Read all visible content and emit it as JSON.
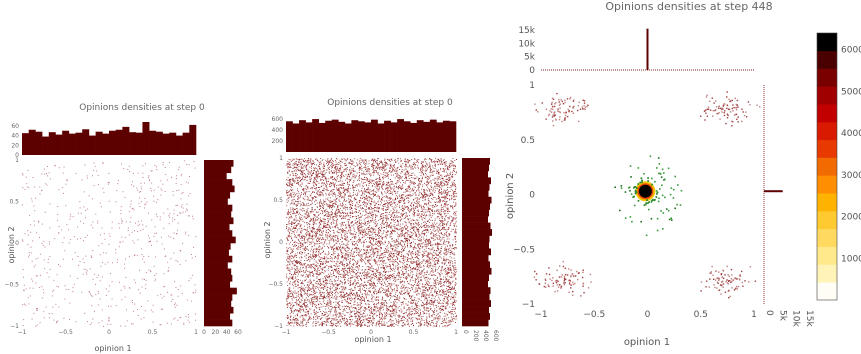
{
  "chart_data": [
    {
      "type": "scatter",
      "title": "Opinions densities at step 0",
      "xlabel": "opinion 1",
      "ylabel": "opinion 2",
      "xlim": [
        -1,
        1
      ],
      "ylim": [
        -1,
        1
      ],
      "x_ticks": [
        "−1",
        "−0.5",
        "0",
        "0.5",
        "1"
      ],
      "y_ticks": [
        "1",
        "0.5",
        "0",
        "−0.5",
        "−1"
      ],
      "distribution": "uniform",
      "point_color": "#b06070",
      "bar_color": "#5c0000",
      "top_hist": {
        "yticks": [
          "60",
          "40",
          "20",
          "0"
        ],
        "ymax": 68,
        "values": [
          45,
          52,
          48,
          38,
          47,
          42,
          50,
          44,
          46,
          53,
          40,
          48,
          44,
          50,
          52,
          58,
          47,
          46,
          68,
          50,
          48,
          44,
          46,
          40,
          46,
          62
        ]
      },
      "right_hist": {
        "xticks": [
          "0",
          "20",
          "40",
          "60"
        ],
        "xmax": 60,
        "values": [
          52,
          48,
          40,
          50,
          54,
          46,
          42,
          50,
          48,
          52,
          45,
          50,
          56,
          47,
          44,
          50,
          42,
          48,
          50,
          46,
          58,
          50,
          48,
          52,
          46,
          50
        ]
      }
    },
    {
      "type": "scatter",
      "title": "Opinions densities at step 0",
      "xlabel": "opinion 1",
      "ylabel": "opinion 2",
      "xlim": [
        -1,
        1
      ],
      "ylim": [
        -1,
        1
      ],
      "x_ticks": [
        "−1",
        "−0.5",
        "0",
        "0.5",
        "1"
      ],
      "y_ticks": [
        "1",
        "0.5",
        "0",
        "−0.5",
        "−1"
      ],
      "distribution": "uniform-dense",
      "point_color": "#8a1c1c",
      "bar_color": "#5c0000",
      "top_hist": {
        "yticks": [
          "600",
          "400",
          "200"
        ],
        "ymax": 620,
        "values": [
          560,
          520,
          580,
          540,
          600,
          530,
          570,
          590,
          550,
          520,
          580,
          560,
          540,
          590,
          520,
          570,
          540,
          600,
          560,
          530,
          580,
          550,
          590,
          540,
          570,
          560
        ]
      },
      "right_hist": {
        "xticks": [
          "0",
          "200",
          "400",
          "600"
        ],
        "xmax": 600,
        "values": [
          560,
          540,
          520,
          580,
          550,
          530,
          590,
          560,
          540,
          520,
          570,
          600,
          550,
          540,
          580,
          530,
          560,
          590,
          540,
          520,
          570,
          550,
          580,
          540,
          560,
          530
        ]
      }
    },
    {
      "type": "heatmap",
      "title": "Opinions densities at step 448",
      "xlabel": "opinion 1",
      "ylabel": "opinion 2",
      "xlim": [
        -1,
        1
      ],
      "ylim": [
        -1,
        1
      ],
      "x_ticks": [
        "−1",
        "−0.5",
        "0",
        "0.5",
        "1"
      ],
      "y_ticks": [
        "1",
        "0.5",
        "0",
        "−0.5",
        "−1"
      ],
      "top_hist": {
        "yticks": [
          "15k",
          "10k",
          "5k",
          "0"
        ],
        "ymax": 15000,
        "peak_x": 0,
        "peak_value": 15500
      },
      "right_hist": {
        "xticks": [
          "0",
          "5k",
          "10k",
          "15k"
        ],
        "xmax": 15000,
        "peak_y": 0.03,
        "peak_value": 7000
      },
      "clusters": [
        {
          "name": "center",
          "x": -0.02,
          "y": 0.03,
          "spread": 0.05,
          "density": "high"
        },
        {
          "name": "top-left",
          "x": -0.8,
          "y": 0.78,
          "spread": 0.12,
          "density": "low"
        },
        {
          "name": "top-right",
          "x": 0.72,
          "y": 0.78,
          "spread": 0.12,
          "density": "low"
        },
        {
          "name": "bottom-left",
          "x": -0.82,
          "y": -0.78,
          "spread": 0.12,
          "density": "low"
        },
        {
          "name": "bottom-right",
          "x": 0.72,
          "y": -0.78,
          "spread": 0.12,
          "density": "low"
        },
        {
          "name": "green-ring",
          "x": 0,
          "y": 0,
          "radius": 0.3,
          "density": "sparse"
        }
      ],
      "colorbar": {
        "ticks": [
          "6000",
          "5000",
          "4000",
          "3000",
          "2000",
          "1000"
        ],
        "min": 0,
        "max": 6400,
        "colors": [
          "#fffdf5",
          "#fff3b8",
          "#ffe98a",
          "#ffd960",
          "#ffc930",
          "#ffb300",
          "#ff8f00",
          "#f26b00",
          "#e83a00",
          "#d91a00",
          "#c20000",
          "#a00000",
          "#7a0000",
          "#4a0000",
          "#000000"
        ]
      }
    }
  ]
}
